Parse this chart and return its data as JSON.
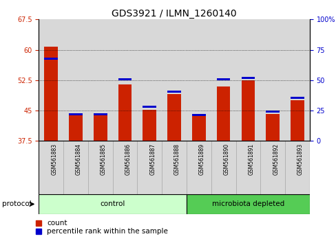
{
  "title": "GDS3921 / ILMN_1260140",
  "samples": [
    "GSM561883",
    "GSM561884",
    "GSM561885",
    "GSM561886",
    "GSM561887",
    "GSM561888",
    "GSM561889",
    "GSM561890",
    "GSM561891",
    "GSM561892",
    "GSM561893"
  ],
  "red_values": [
    60.8,
    44.2,
    44.3,
    51.5,
    45.2,
    49.0,
    44.0,
    51.0,
    52.5,
    44.2,
    47.5
  ],
  "blue_values": [
    57.5,
    43.8,
    43.9,
    52.5,
    45.7,
    49.5,
    43.7,
    52.5,
    52.8,
    44.5,
    47.9
  ],
  "ylim_left": [
    37.5,
    67.5
  ],
  "yticks_left": [
    37.5,
    45.0,
    52.5,
    60.0,
    67.5
  ],
  "ylim_right": [
    0,
    100
  ],
  "yticks_right": [
    0,
    25,
    50,
    75,
    100
  ],
  "groups": [
    {
      "label": "control",
      "start": 0,
      "end": 5,
      "color": "#ccffcc"
    },
    {
      "label": "microbiota depleted",
      "start": 6,
      "end": 10,
      "color": "#55cc55"
    }
  ],
  "bar_width": 0.55,
  "red_color": "#cc2200",
  "blue_color": "#0000cc",
  "col_gray": "#d8d8d8",
  "title_fontsize": 10,
  "tick_fontsize": 7,
  "label_fontsize": 8,
  "protocol_label": "protocol",
  "legend_items": [
    "count",
    "percentile rank within the sample"
  ]
}
